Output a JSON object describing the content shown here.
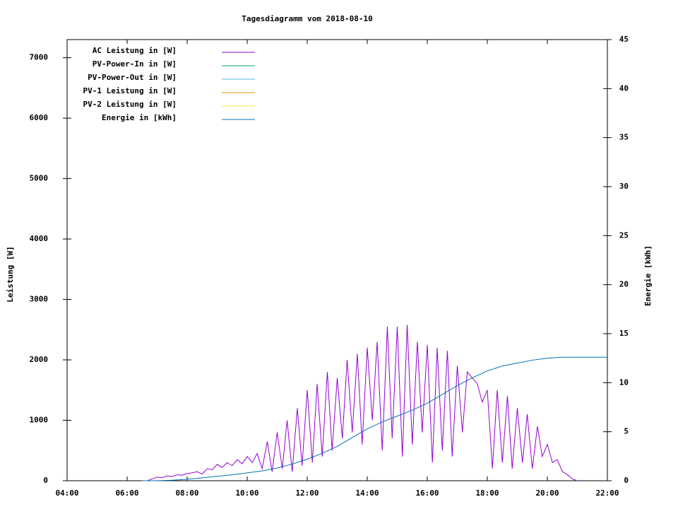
{
  "chart_data": {
    "type": "line",
    "title": "Tagesdiagramm vom 2018-08-10",
    "y_label": "Leistung [W]",
    "y2_label": "Energie [kWh]",
    "xlim": [
      4,
      22
    ],
    "xticks": [
      {
        "value": 4,
        "label": "04:00"
      },
      {
        "value": 6,
        "label": "06:00"
      },
      {
        "value": 8,
        "label": "08:00"
      },
      {
        "value": 10,
        "label": "10:00"
      },
      {
        "value": 12,
        "label": "12:00"
      },
      {
        "value": 14,
        "label": "14:00"
      },
      {
        "value": 16,
        "label": "16:00"
      },
      {
        "value": 18,
        "label": "18:00"
      },
      {
        "value": 20,
        "label": "20:00"
      },
      {
        "value": 22,
        "label": "22:00"
      }
    ],
    "ylim": [
      0,
      7300
    ],
    "yticks": [
      0,
      1000,
      2000,
      3000,
      4000,
      5000,
      6000,
      7000
    ],
    "y2lim": [
      0,
      45
    ],
    "y2ticks": [
      0,
      5,
      10,
      15,
      20,
      25,
      30,
      35,
      40,
      45
    ],
    "legend": "top-left",
    "series": [
      {
        "name": "AC Leistung in [W]",
        "color": "#9400d3",
        "axis": "y",
        "x": [
          6.67,
          6.83,
          7.0,
          7.17,
          7.33,
          7.5,
          7.67,
          7.83,
          8.0,
          8.17,
          8.33,
          8.5,
          8.67,
          8.83,
          9.0,
          9.17,
          9.33,
          9.5,
          9.67,
          9.83,
          10.0,
          10.17,
          10.33,
          10.5,
          10.67,
          10.83,
          11.0,
          11.17,
          11.33,
          11.5,
          11.67,
          11.83,
          12.0,
          12.17,
          12.33,
          12.5,
          12.67,
          12.83,
          13.0,
          13.17,
          13.33,
          13.5,
          13.67,
          13.83,
          14.0,
          14.17,
          14.33,
          14.5,
          14.67,
          14.83,
          15.0,
          15.17,
          15.33,
          15.5,
          15.67,
          15.83,
          16.0,
          16.17,
          16.33,
          16.5,
          16.67,
          16.83,
          17.0,
          17.17,
          17.33,
          17.5,
          17.67,
          17.83,
          18.0,
          18.17,
          18.33,
          18.5,
          18.67,
          18.83,
          19.0,
          19.17,
          19.33,
          19.5,
          19.67,
          19.83,
          20.0,
          20.17,
          20.33,
          20.5,
          20.67,
          20.83,
          21.0
        ],
        "values": [
          0,
          30,
          60,
          50,
          80,
          70,
          100,
          90,
          120,
          130,
          150,
          110,
          200,
          180,
          270,
          220,
          300,
          250,
          350,
          280,
          400,
          300,
          450,
          200,
          650,
          150,
          800,
          200,
          1000,
          150,
          1200,
          250,
          1500,
          300,
          1600,
          400,
          1800,
          500,
          1700,
          700,
          2000,
          800,
          2100,
          600,
          2200,
          1000,
          2300,
          500,
          2550,
          700,
          2550,
          400,
          2580,
          600,
          2300,
          800,
          2250,
          300,
          2200,
          500,
          2150,
          400,
          1900,
          800,
          1800,
          1700,
          1600,
          1300,
          1500,
          200,
          1500,
          300,
          1400,
          200,
          1200,
          300,
          1100,
          200,
          900,
          400,
          600,
          300,
          350,
          150,
          100,
          30,
          0
        ]
      },
      {
        "name": "PV-Power-In in [W]",
        "color": "#009e73",
        "axis": "y"
      },
      {
        "name": "PV-Power-Out in [W]",
        "color": "#56b4e9",
        "axis": "y"
      },
      {
        "name": "PV-1 Leistung in [W]",
        "color": "#e69f00",
        "axis": "y"
      },
      {
        "name": "PV-2 Leistung in [W]",
        "color": "#f0e442",
        "axis": "y"
      },
      {
        "name": "Energie in [kWh]",
        "color": "#0072b2",
        "axis": "y2",
        "x": [
          6.5,
          7,
          7.5,
          8,
          8.5,
          9,
          9.5,
          10,
          10.5,
          11,
          11.5,
          12,
          12.5,
          13,
          13.5,
          14,
          14.5,
          15,
          15.5,
          16,
          16.5,
          17,
          17.5,
          18,
          18.5,
          19,
          19.5,
          20,
          20.5,
          21,
          21.5,
          22
        ],
        "values": [
          0,
          0,
          0.05,
          0.15,
          0.3,
          0.45,
          0.6,
          0.8,
          1.0,
          1.3,
          1.7,
          2.2,
          2.8,
          3.5,
          4.4,
          5.3,
          6.0,
          6.6,
          7.2,
          7.9,
          8.8,
          9.7,
          10.5,
          11.2,
          11.7,
          12.0,
          12.3,
          12.5,
          12.6,
          12.6,
          12.6,
          12.6
        ]
      }
    ]
  }
}
